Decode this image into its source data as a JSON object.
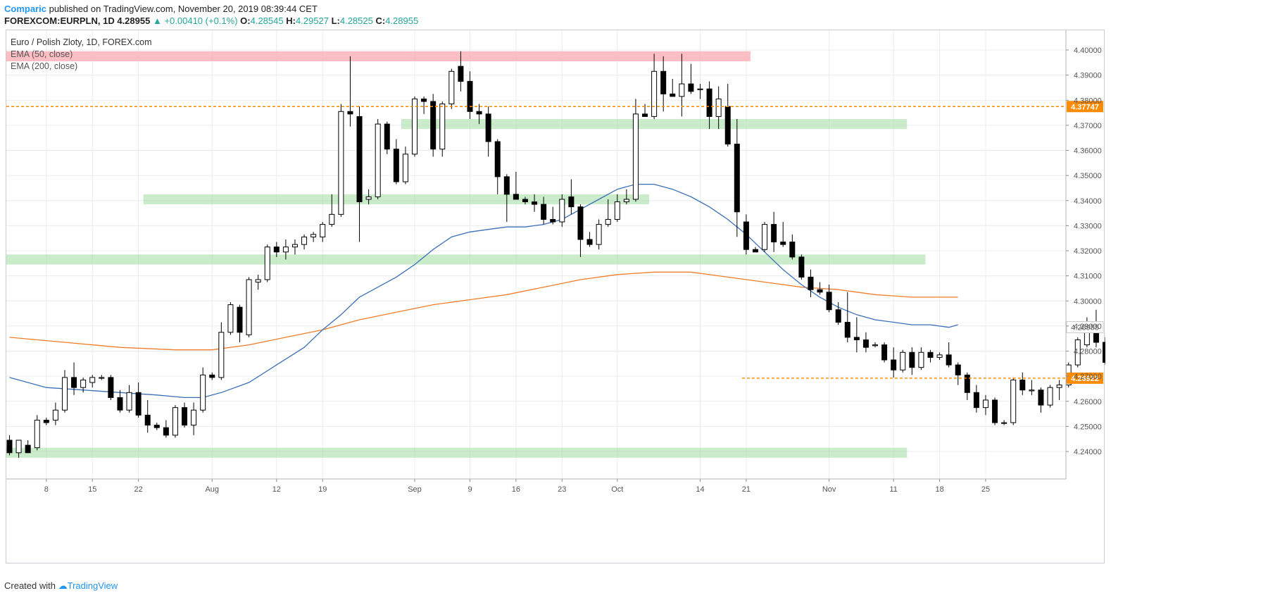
{
  "header": {
    "author": "Comparic",
    "published_text": "published on TradingView.com, November 20, 2019 08:39:44 CET",
    "symbol_line": "FOREXCOM:EURPLN, 1D  4.28955",
    "change": "▲ +0.00410 (+0.1%)",
    "o_label": "O:",
    "o_value": "4.28545",
    "h_label": "H:",
    "h_value": "4.29527",
    "l_label": "L:",
    "l_value": "4.28525",
    "c_label": "C:",
    "c_value": "4.28955"
  },
  "legend": {
    "title": "Euro / Polish Zloty, 1D, FOREX.com",
    "ema50": "EMA (50, close)",
    "ema200": "EMA (200, close)"
  },
  "footer": {
    "created_with": "Created with",
    "brand": "TradingView"
  },
  "colors": {
    "up_fill": "#ffffff",
    "down_fill": "#000000",
    "candle_border": "#000000",
    "ema50": "#3b6fb6",
    "ema200": "#f07d2a",
    "resistance_zone": "#ffb3b8",
    "support_zone": "#a8e0a8",
    "level_line": "#ff8c00",
    "grid": "#e9ecef"
  },
  "chart_data": {
    "type": "candlestick",
    "ylim": [
      4.232,
      4.405
    ],
    "y_ticks": [
      4.24,
      4.25,
      4.26,
      4.27,
      4.28,
      4.29,
      4.3,
      4.31,
      4.32,
      4.33,
      4.34,
      4.35,
      4.36,
      4.37,
      4.38,
      4.39,
      4.4
    ],
    "y_tick_labels": [
      "4.24000",
      "4.25000",
      "4.26000",
      "4.27000",
      "4.28000",
      "4.29000",
      "4.30000",
      "4.31000",
      "4.32000",
      "4.33000",
      "4.34000",
      "4.35000",
      "4.36000",
      "4.37000",
      "4.38000",
      "4.39000",
      "4.40000"
    ],
    "price_marker": {
      "value": 4.28955,
      "label": "4.28955"
    },
    "x_tick_labels": [
      {
        "label": "8",
        "day": 4
      },
      {
        "label": "15",
        "day": 9
      },
      {
        "label": "22",
        "day": 14
      },
      {
        "label": "Aug",
        "day": 22
      },
      {
        "label": "12",
        "day": 29
      },
      {
        "label": "19",
        "day": 34
      },
      {
        "label": "Sep",
        "day": 44
      },
      {
        "label": "9",
        "day": 50
      },
      {
        "label": "16",
        "day": 55
      },
      {
        "label": "23",
        "day": 60
      },
      {
        "label": "Oct",
        "day": 66
      },
      {
        "label": "14",
        "day": 75
      },
      {
        "label": "21",
        "day": 80
      },
      {
        "label": "Nov",
        "day": 89
      },
      {
        "label": "11",
        "day": 96
      },
      {
        "label": "18",
        "day": 101
      },
      {
        "label": "25",
        "day": 106
      }
    ],
    "candles": [
      {
        "o": 4.2445,
        "h": 4.2465,
        "l": 4.2385,
        "c": 4.2395
      },
      {
        "o": 4.2395,
        "h": 4.2435,
        "l": 4.2375,
        "c": 4.2445
      },
      {
        "o": 4.2425,
        "h": 4.2445,
        "l": 4.2395,
        "c": 4.2395
      },
      {
        "o": 4.2415,
        "h": 4.2545,
        "l": 4.2405,
        "c": 4.2525
      },
      {
        "o": 4.2525,
        "h": 4.2535,
        "l": 4.2505,
        "c": 4.2515
      },
      {
        "o": 4.2525,
        "h": 4.2595,
        "l": 4.2505,
        "c": 4.2565
      },
      {
        "o": 4.2565,
        "h": 4.2725,
        "l": 4.2555,
        "c": 4.2695
      },
      {
        "o": 4.2695,
        "h": 4.2755,
        "l": 4.2625,
        "c": 4.2655
      },
      {
        "o": 4.2655,
        "h": 4.2695,
        "l": 4.2635,
        "c": 4.2685
      },
      {
        "o": 4.2675,
        "h": 4.2705,
        "l": 4.2655,
        "c": 4.2695
      },
      {
        "o": 4.2695,
        "h": 4.2705,
        "l": 4.2685,
        "c": 4.2695
      },
      {
        "o": 4.2695,
        "h": 4.2705,
        "l": 4.2605,
        "c": 4.2615
      },
      {
        "o": 4.2615,
        "h": 4.2645,
        "l": 4.2555,
        "c": 4.2565
      },
      {
        "o": 4.2565,
        "h": 4.2665,
        "l": 4.2555,
        "c": 4.2635
      },
      {
        "o": 4.2635,
        "h": 4.2675,
        "l": 4.2535,
        "c": 4.2545
      },
      {
        "o": 4.2545,
        "h": 4.2605,
        "l": 4.2475,
        "c": 4.2505
      },
      {
        "o": 4.2505,
        "h": 4.2515,
        "l": 4.2485,
        "c": 4.2495
      },
      {
        "o": 4.2495,
        "h": 4.2525,
        "l": 4.2455,
        "c": 4.2465
      },
      {
        "o": 4.2465,
        "h": 4.2585,
        "l": 4.2455,
        "c": 4.2575
      },
      {
        "o": 4.2575,
        "h": 4.2595,
        "l": 4.2495,
        "c": 4.2505
      },
      {
        "o": 4.2505,
        "h": 4.2595,
        "l": 4.2465,
        "c": 4.2565
      },
      {
        "o": 4.2565,
        "h": 4.2735,
        "l": 4.2555,
        "c": 4.2705
      },
      {
        "o": 4.2705,
        "h": 4.2715,
        "l": 4.2685,
        "c": 4.2695
      },
      {
        "o": 4.2695,
        "h": 4.2915,
        "l": 4.2685,
        "c": 4.2875
      },
      {
        "o": 4.2875,
        "h": 4.2995,
        "l": 4.2865,
        "c": 4.2985
      },
      {
        "o": 4.2975,
        "h": 4.2985,
        "l": 4.2835,
        "c": 4.2875
      },
      {
        "o": 4.2865,
        "h": 4.3095,
        "l": 4.2855,
        "c": 4.3085
      },
      {
        "o": 4.3075,
        "h": 4.3105,
        "l": 4.3045,
        "c": 4.3085
      },
      {
        "o": 4.3085,
        "h": 4.3225,
        "l": 4.3075,
        "c": 4.3215
      },
      {
        "o": 4.3215,
        "h": 4.3235,
        "l": 4.3175,
        "c": 4.3195
      },
      {
        "o": 4.3195,
        "h": 4.3245,
        "l": 4.3165,
        "c": 4.3215
      },
      {
        "o": 4.3215,
        "h": 4.3245,
        "l": 4.3185,
        "c": 4.3225
      },
      {
        "o": 4.3225,
        "h": 4.3265,
        "l": 4.3205,
        "c": 4.3255
      },
      {
        "o": 4.3255,
        "h": 4.3275,
        "l": 4.3235,
        "c": 4.3265
      },
      {
        "o": 4.3255,
        "h": 4.3315,
        "l": 4.3235,
        "c": 4.3305
      },
      {
        "o": 4.3305,
        "h": 4.3425,
        "l": 4.3295,
        "c": 4.3345
      },
      {
        "o": 4.3345,
        "h": 4.3785,
        "l": 4.3335,
        "c": 4.3755
      },
      {
        "o": 4.3755,
        "h": 4.3975,
        "l": 4.3695,
        "c": 4.3745
      },
      {
        "o": 4.3735,
        "h": 4.3775,
        "l": 4.3235,
        "c": 4.3395
      },
      {
        "o": 4.3405,
        "h": 4.3445,
        "l": 4.3385,
        "c": 4.3415
      },
      {
        "o": 4.3415,
        "h": 4.3725,
        "l": 4.3405,
        "c": 4.3705
      },
      {
        "o": 4.3705,
        "h": 4.3715,
        "l": 4.3585,
        "c": 4.3605
      },
      {
        "o": 4.3605,
        "h": 4.3645,
        "l": 4.3465,
        "c": 4.3475
      },
      {
        "o": 4.3475,
        "h": 4.3615,
        "l": 4.3465,
        "c": 4.3585
      },
      {
        "o": 4.3585,
        "h": 4.3815,
        "l": 4.3575,
        "c": 4.3805
      },
      {
        "o": 4.3805,
        "h": 4.3815,
        "l": 4.3745,
        "c": 4.3795
      },
      {
        "o": 4.3795,
        "h": 4.3825,
        "l": 4.3575,
        "c": 4.3605
      },
      {
        "o": 4.3605,
        "h": 4.3795,
        "l": 4.3575,
        "c": 4.3785
      },
      {
        "o": 4.3785,
        "h": 4.3925,
        "l": 4.3765,
        "c": 4.3915
      },
      {
        "o": 4.3935,
        "h": 4.3995,
        "l": 4.3835,
        "c": 4.3875
      },
      {
        "o": 4.3875,
        "h": 4.3915,
        "l": 4.3725,
        "c": 4.3755
      },
      {
        "o": 4.3755,
        "h": 4.3785,
        "l": 4.3705,
        "c": 4.3745
      },
      {
        "o": 4.3745,
        "h": 4.3775,
        "l": 4.3575,
        "c": 4.3635
      },
      {
        "o": 4.3635,
        "h": 4.3645,
        "l": 4.3425,
        "c": 4.3495
      },
      {
        "o": 4.3495,
        "h": 4.3505,
        "l": 4.3315,
        "c": 4.3425
      },
      {
        "o": 4.3425,
        "h": 4.3515,
        "l": 4.3405,
        "c": 4.3405
      },
      {
        "o": 4.3405,
        "h": 4.3415,
        "l": 4.3385,
        "c": 4.3395
      },
      {
        "o": 4.3395,
        "h": 4.3425,
        "l": 4.3355,
        "c": 4.3385
      },
      {
        "o": 4.3385,
        "h": 4.3415,
        "l": 4.3305,
        "c": 4.3325
      },
      {
        "o": 4.3325,
        "h": 4.3375,
        "l": 4.3305,
        "c": 4.3315
      },
      {
        "o": 4.3315,
        "h": 4.3425,
        "l": 4.3295,
        "c": 4.3405
      },
      {
        "o": 4.3415,
        "h": 4.3485,
        "l": 4.3345,
        "c": 4.3375
      },
      {
        "o": 4.3375,
        "h": 4.3385,
        "l": 4.3175,
        "c": 4.3245
      },
      {
        "o": 4.3245,
        "h": 4.3275,
        "l": 4.3215,
        "c": 4.3225
      },
      {
        "o": 4.3225,
        "h": 4.3325,
        "l": 4.3205,
        "c": 4.3305
      },
      {
        "o": 4.3305,
        "h": 4.3405,
        "l": 4.3295,
        "c": 4.3325
      },
      {
        "o": 4.3325,
        "h": 4.3425,
        "l": 4.3315,
        "c": 4.3395
      },
      {
        "o": 4.3395,
        "h": 4.3445,
        "l": 4.3385,
        "c": 4.3405
      },
      {
        "o": 4.3405,
        "h": 4.3805,
        "l": 4.3395,
        "c": 4.3745
      },
      {
        "o": 4.3745,
        "h": 4.3785,
        "l": 4.3735,
        "c": 4.3735
      },
      {
        "o": 4.3735,
        "h": 4.3985,
        "l": 4.3725,
        "c": 4.3915
      },
      {
        "o": 4.3915,
        "h": 4.3975,
        "l": 4.3755,
        "c": 4.3825
      },
      {
        "o": 4.3825,
        "h": 4.3885,
        "l": 4.3815,
        "c": 4.3815
      },
      {
        "o": 4.3815,
        "h": 4.3985,
        "l": 4.3735,
        "c": 4.3865
      },
      {
        "o": 4.3865,
        "h": 4.3945,
        "l": 4.3825,
        "c": 4.3835
      },
      {
        "o": 4.3845,
        "h": 4.3865,
        "l": 4.3805,
        "c": 4.3845
      },
      {
        "o": 4.3845,
        "h": 4.3875,
        "l": 4.3685,
        "c": 4.3735
      },
      {
        "o": 4.3735,
        "h": 4.3855,
        "l": 4.3685,
        "c": 4.3805
      },
      {
        "o": 4.3775,
        "h": 4.3865,
        "l": 4.3615,
        "c": 4.3625
      },
      {
        "o": 4.3625,
        "h": 4.3725,
        "l": 4.3255,
        "c": 4.3355
      },
      {
        "o": 4.3315,
        "h": 4.3345,
        "l": 4.3185,
        "c": 4.3205
      },
      {
        "o": 4.3205,
        "h": 4.3215,
        "l": 4.3195,
        "c": 4.3195
      },
      {
        "o": 4.3205,
        "h": 4.3315,
        "l": 4.3195,
        "c": 4.3305
      },
      {
        "o": 4.3305,
        "h": 4.3355,
        "l": 4.3195,
        "c": 4.3235
      },
      {
        "o": 4.3235,
        "h": 4.3315,
        "l": 4.3215,
        "c": 4.3225
      },
      {
        "o": 4.3235,
        "h": 4.3265,
        "l": 4.3165,
        "c": 4.3175
      },
      {
        "o": 4.3175,
        "h": 4.3185,
        "l": 4.3085,
        "c": 4.3095
      },
      {
        "o": 4.3095,
        "h": 4.3125,
        "l": 4.3015,
        "c": 4.3045
      },
      {
        "o": 4.3045,
        "h": 4.3075,
        "l": 4.3025,
        "c": 4.3035
      },
      {
        "o": 4.3035,
        "h": 4.3065,
        "l": 4.2955,
        "c": 4.2965
      },
      {
        "o": 4.2965,
        "h": 4.2995,
        "l": 4.2905,
        "c": 4.2915
      },
      {
        "o": 4.2915,
        "h": 4.3035,
        "l": 4.2835,
        "c": 4.2855
      },
      {
        "o": 4.2855,
        "h": 4.2935,
        "l": 4.2795,
        "c": 4.2845
      },
      {
        "o": 4.2845,
        "h": 4.2875,
        "l": 4.2795,
        "c": 4.2815
      },
      {
        "o": 4.2825,
        "h": 4.2835,
        "l": 4.2815,
        "c": 4.2825
      },
      {
        "o": 4.2825,
        "h": 4.2835,
        "l": 4.2755,
        "c": 4.2765
      },
      {
        "o": 4.2765,
        "h": 4.2815,
        "l": 4.2695,
        "c": 4.2725
      },
      {
        "o": 4.2725,
        "h": 4.2805,
        "l": 4.2715,
        "c": 4.2795
      },
      {
        "o": 4.2795,
        "h": 4.2815,
        "l": 4.2705,
        "c": 4.2735
      },
      {
        "o": 4.2735,
        "h": 4.2815,
        "l": 4.2725,
        "c": 4.2795
      },
      {
        "o": 4.2795,
        "h": 4.2805,
        "l": 4.2755,
        "c": 4.2775
      },
      {
        "o": 4.2775,
        "h": 4.2795,
        "l": 4.2765,
        "c": 4.2785
      },
      {
        "o": 4.2785,
        "h": 4.2835,
        "l": 4.2735,
        "c": 4.2745
      },
      {
        "o": 4.2745,
        "h": 4.2755,
        "l": 4.2665,
        "c": 4.2705
      },
      {
        "o": 4.2705,
        "h": 4.2715,
        "l": 4.2605,
        "c": 4.2635
      },
      {
        "o": 4.2635,
        "h": 4.2665,
        "l": 4.2555,
        "c": 4.2575
      },
      {
        "o": 4.2575,
        "h": 4.2625,
        "l": 4.2545,
        "c": 4.2605
      },
      {
        "o": 4.2605,
        "h": 4.2615,
        "l": 4.2505,
        "c": 4.2515
      },
      {
        "o": 4.2515,
        "h": 4.2525,
        "l": 4.2505,
        "c": 4.2515
      },
      {
        "o": 4.2515,
        "h": 4.2695,
        "l": 4.2505,
        "c": 4.2685
      },
      {
        "o": 4.2685,
        "h": 4.2715,
        "l": 4.2625,
        "c": 4.2645
      },
      {
        "o": 4.2645,
        "h": 4.2685,
        "l": 4.2625,
        "c": 4.2645
      },
      {
        "o": 4.2645,
        "h": 4.2655,
        "l": 4.2555,
        "c": 4.2585
      },
      {
        "o": 4.2585,
        "h": 4.2665,
        "l": 4.2575,
        "c": 4.2655
      },
      {
        "o": 4.2655,
        "h": 4.2685,
        "l": 4.2605,
        "c": 4.2665
      },
      {
        "o": 4.2665,
        "h": 4.2755,
        "l": 4.2655,
        "c": 4.2745
      },
      {
        "o": 4.2745,
        "h": 4.2855,
        "l": 4.2735,
        "c": 4.2845
      },
      {
        "o": 4.2825,
        "h": 4.2935,
        "l": 4.2815,
        "c": 4.2915
      },
      {
        "o": 4.2915,
        "h": 4.2965,
        "l": 4.2815,
        "c": 4.2835
      },
      {
        "o": 4.2835,
        "h": 4.2855,
        "l": 4.2745,
        "c": 4.2755
      },
      {
        "o": 4.2755,
        "h": 4.2775,
        "l": 4.2745,
        "c": 4.2755
      },
      {
        "o": 4.2755,
        "h": 4.2965,
        "l": 4.2745,
        "c": 4.2915
      },
      {
        "o": 4.2915,
        "h": 4.2965,
        "l": 4.2855,
        "c": 4.2855
      },
      {
        "o": 4.28545,
        "h": 4.29527,
        "l": 4.28525,
        "c": 4.28955
      }
    ],
    "ema50": [
      [
        0,
        4.2695
      ],
      [
        4,
        4.2655
      ],
      [
        8,
        4.2645
      ],
      [
        12,
        4.2635
      ],
      [
        16,
        4.2625
      ],
      [
        19,
        4.2615
      ],
      [
        21,
        4.2615
      ],
      [
        23,
        4.2635
      ],
      [
        26,
        4.2675
      ],
      [
        29,
        4.2745
      ],
      [
        32,
        4.2815
      ],
      [
        34,
        4.2885
      ],
      [
        36,
        4.2945
      ],
      [
        38,
        4.3015
      ],
      [
        40,
        4.3055
      ],
      [
        42,
        4.3095
      ],
      [
        44,
        4.3145
      ],
      [
        46,
        4.3205
      ],
      [
        48,
        4.3255
      ],
      [
        50,
        4.3275
      ],
      [
        52,
        4.3285
      ],
      [
        54,
        4.3295
      ],
      [
        56,
        4.3295
      ],
      [
        58,
        4.3305
      ],
      [
        60,
        4.3325
      ],
      [
        62,
        4.3365
      ],
      [
        64,
        4.3405
      ],
      [
        66,
        4.3445
      ],
      [
        68,
        4.3465
      ],
      [
        70,
        4.3465
      ],
      [
        72,
        4.3445
      ],
      [
        74,
        4.3415
      ],
      [
        76,
        4.3375
      ],
      [
        78,
        4.3325
      ],
      [
        80,
        4.3265
      ],
      [
        82,
        4.3195
      ],
      [
        84,
        4.3125
      ],
      [
        86,
        4.3065
      ],
      [
        88,
        4.3015
      ],
      [
        90,
        4.2975
      ],
      [
        92,
        4.2945
      ],
      [
        94,
        4.2925
      ],
      [
        96,
        4.2915
      ],
      [
        98,
        4.2905
      ],
      [
        100,
        4.2905
      ],
      [
        102,
        4.2895
      ],
      [
        103,
        4.2905
      ]
    ],
    "ema200": [
      [
        0,
        4.2855
      ],
      [
        6,
        4.2835
      ],
      [
        12,
        4.2815
      ],
      [
        18,
        4.2805
      ],
      [
        22,
        4.2805
      ],
      [
        26,
        4.2825
      ],
      [
        30,
        4.2855
      ],
      [
        34,
        4.2885
      ],
      [
        38,
        4.2925
      ],
      [
        42,
        4.2955
      ],
      [
        46,
        4.2985
      ],
      [
        50,
        4.3005
      ],
      [
        54,
        4.3025
      ],
      [
        58,
        4.3055
      ],
      [
        62,
        4.3085
      ],
      [
        66,
        4.3105
      ],
      [
        70,
        4.3115
      ],
      [
        74,
        4.3115
      ],
      [
        78,
        4.3095
      ],
      [
        82,
        4.3075
      ],
      [
        86,
        4.3055
      ],
      [
        90,
        4.3045
      ],
      [
        94,
        4.3025
      ],
      [
        98,
        4.3015
      ],
      [
        102,
        4.3015
      ],
      [
        103,
        4.3015
      ]
    ],
    "zones": [
      {
        "kind": "resistance",
        "from_day": 0,
        "to_day": 80,
        "low": 4.3955,
        "high": 4.3995
      },
      {
        "kind": "support",
        "from_day": 43,
        "to_day": 97,
        "low": 4.3685,
        "high": 4.3725
      },
      {
        "kind": "support",
        "from_day": 15,
        "to_day": 69,
        "low": 4.3385,
        "high": 4.3425
      },
      {
        "kind": "support",
        "from_day": 0,
        "to_day": 99,
        "low": 4.3145,
        "high": 4.3185
      },
      {
        "kind": "support",
        "from_day": 0,
        "to_day": 97,
        "low": 4.2375,
        "high": 4.2415
      }
    ],
    "levels": [
      {
        "value": 4.37747,
        "label": "4.37747",
        "from_day": 0
      },
      {
        "value": 4.26922,
        "label": "4.26922",
        "from_day": 80
      }
    ]
  }
}
